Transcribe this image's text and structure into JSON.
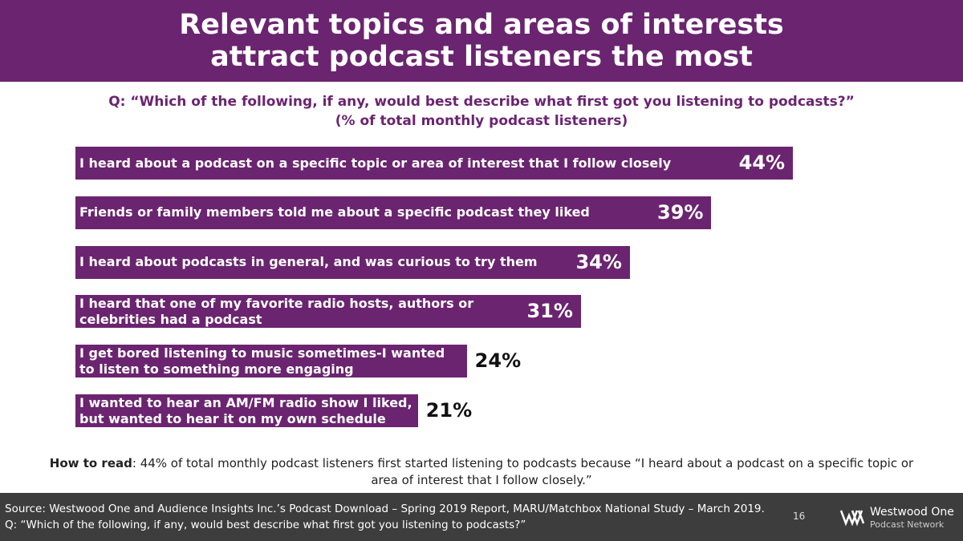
{
  "header": {
    "title": "Relevant topics and areas of interests attract podcast listeners the most"
  },
  "chart_data": {
    "type": "bar",
    "orientation": "horizontal",
    "subtitle": "Q: “Which of the following, if any, would best describe what first got you listening to podcasts?”",
    "subtitle_note": "(% of total monthly podcast listeners)",
    "categories": [
      "I heard about a podcast on a specific topic or area of interest that I follow closely",
      "Friends or family members told me about a specific podcast they liked",
      "I heard about podcasts in general, and was curious to try them",
      "I heard that one of my favorite radio hosts, authors or celebrities had a podcast",
      "I get bored listening to music sometimes-I wanted to listen to something more engaging",
      "I wanted to hear an AM/FM radio show I liked, but wanted to hear it on my own schedule"
    ],
    "values": [
      44,
      39,
      34,
      31,
      24,
      21
    ],
    "value_labels": [
      "44%",
      "39%",
      "34%",
      "31%",
      "24%",
      "21%"
    ],
    "color": "#6b2470"
  },
  "how_to_read": {
    "label": "How to read",
    "text": ": 44% of total monthly podcast listeners first started listening to podcasts because “I heard about a podcast on a specific topic or area of interest that I follow closely.”"
  },
  "footer": {
    "source": "Source: Westwood One and Audience Insights Inc.’s Podcast Download – Spring 2019 Report, MARU/Matchbox National Study – March 2019. Q: “Which of the following, if any, would best describe what first got you listening to podcasts?”",
    "page_number": "16",
    "logo_name": "Westwood One",
    "logo_sub": "Podcast Network"
  }
}
